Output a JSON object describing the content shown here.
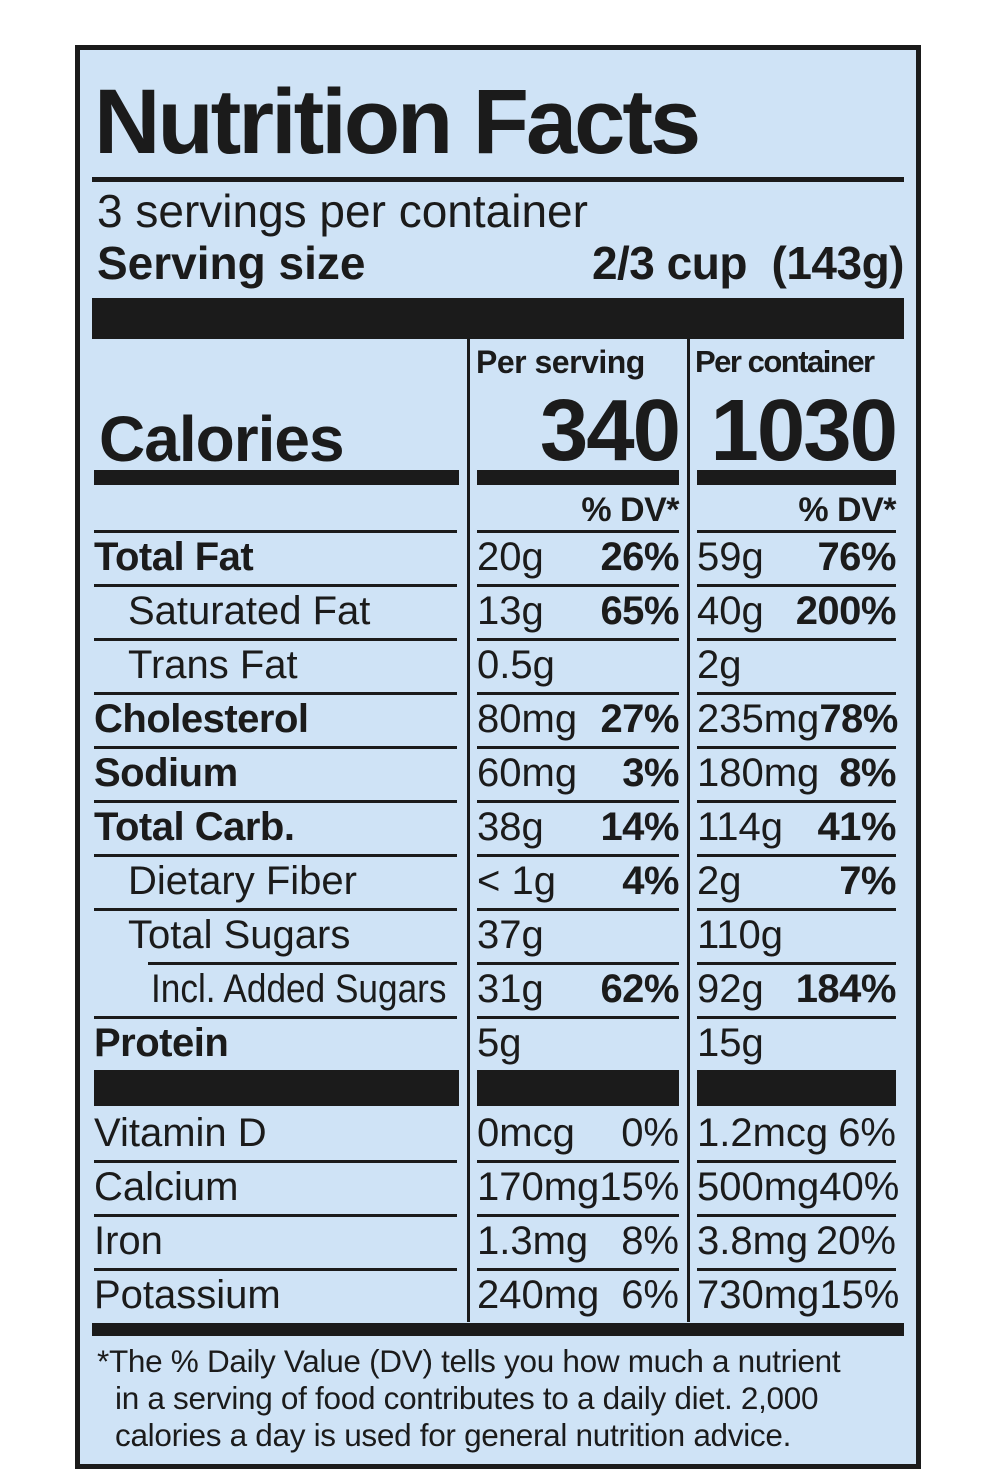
{
  "label": {
    "title": "Nutrition Facts",
    "servings_per_container": "3 servings per container",
    "serving_size_label": "Serving size",
    "serving_size_value": "2/3 cup  (143g)",
    "calories": {
      "word": "Calories",
      "per_serving_header": "Per serving",
      "per_serving_value": "340",
      "per_container_header": "Per container",
      "per_container_value": "1030",
      "dv_header": "% DV*"
    },
    "nutrients": [
      {
        "name": "Total Fat",
        "bold": true,
        "indent": 0,
        "s_amt": "20g",
        "s_dv": "26%",
        "c_amt": "59g",
        "c_dv": "76%"
      },
      {
        "name": "Saturated Fat",
        "bold": false,
        "indent": 1,
        "s_amt": "13g",
        "s_dv": "65%",
        "c_amt": "40g",
        "c_dv": "200%"
      },
      {
        "name": "Trans Fat",
        "bold": false,
        "indent": 1,
        "s_amt": "0.5g",
        "s_dv": "",
        "c_amt": "2g",
        "c_dv": ""
      },
      {
        "name": "Cholesterol",
        "bold": true,
        "indent": 0,
        "s_amt": "80mg",
        "s_dv": "27%",
        "c_amt": "235mg",
        "c_dv": "78%"
      },
      {
        "name": "Sodium",
        "bold": true,
        "indent": 0,
        "s_amt": "60mg",
        "s_dv": "3%",
        "c_amt": "180mg",
        "c_dv": "8%"
      },
      {
        "name": "Total Carb.",
        "bold": true,
        "indent": 0,
        "s_amt": "38g",
        "s_dv": "14%",
        "c_amt": "114g",
        "c_dv": "41%"
      },
      {
        "name": "Dietary Fiber",
        "bold": false,
        "indent": 1,
        "s_amt": "< 1g",
        "s_dv": "4%",
        "c_amt": "2g",
        "c_dv": "7%"
      },
      {
        "name": "Total Sugars",
        "bold": false,
        "indent": 1,
        "s_amt": "37g",
        "s_dv": "",
        "c_amt": "110g",
        "c_dv": ""
      },
      {
        "name": "Incl. Added Sugars",
        "bold": false,
        "indent": 2,
        "s_amt": "31g",
        "s_dv": "62%",
        "c_amt": "92g",
        "c_dv": "184%"
      },
      {
        "name": "Protein",
        "bold": true,
        "indent": 0,
        "s_amt": "5g",
        "s_dv": "",
        "c_amt": "15g",
        "c_dv": ""
      }
    ],
    "vitamins": [
      {
        "name": "Vitamin D",
        "s_amt": "0mcg",
        "s_dv": "0%",
        "c_amt": "1.2mcg",
        "c_dv": "6%"
      },
      {
        "name": "Calcium",
        "s_amt": "170mg",
        "s_dv": "15%",
        "c_amt": "500mg",
        "c_dv": "40%"
      },
      {
        "name": "Iron",
        "s_amt": "1.3mg",
        "s_dv": "8%",
        "c_amt": "3.8mg",
        "c_dv": "20%"
      },
      {
        "name": "Potassium",
        "s_amt": "240mg",
        "s_dv": "6%",
        "c_amt": "730mg",
        "c_dv": "15%"
      }
    ],
    "footnote_lines": [
      "*The % Daily Value (DV) tells you how much a nutrient",
      "in a serving of food contributes to a daily diet. 2,000",
      "calories a day is used for general nutrition advice."
    ],
    "colors": {
      "background": "#cfe3f6",
      "ink": "#1b1b1b"
    }
  }
}
